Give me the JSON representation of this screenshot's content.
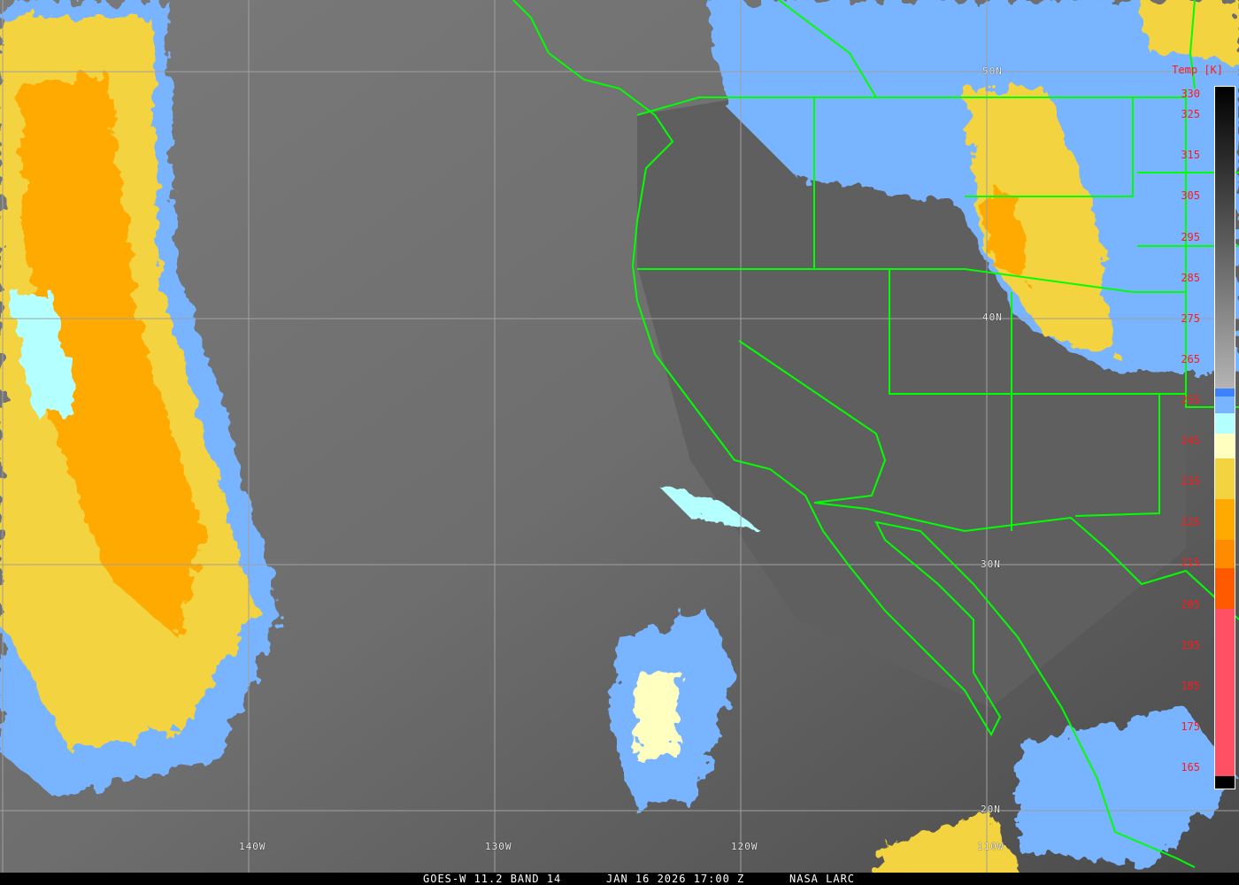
{
  "caption": {
    "satellite": "GOES-W 11.2 BAND 14",
    "datetime": "JAN 16 2026 17:00 Z",
    "credit": "NASA LARC"
  },
  "grid": {
    "longitudes": [
      "140W",
      "130W",
      "120W",
      "110W"
    ],
    "latitudes": [
      "50N",
      "40N",
      "30N",
      "20N"
    ]
  },
  "colorbar": {
    "title": "Temp [K]",
    "ticks": [
      "330",
      "325",
      "315",
      "305",
      "295",
      "285",
      "275",
      "265",
      "255",
      "245",
      "235",
      "225",
      "215",
      "205",
      "195",
      "185",
      "175",
      "165"
    ],
    "range_k": [
      160,
      332
    ],
    "segments": [
      {
        "from": 332,
        "to": 258,
        "color": "gradient #000000→#b4b4b4"
      },
      {
        "from": 258,
        "to": 256,
        "color": "#3c82ff"
      },
      {
        "from": 256,
        "to": 252,
        "color": "#78b4ff"
      },
      {
        "from": 252,
        "to": 247,
        "color": "#b4ffff"
      },
      {
        "from": 247,
        "to": 241,
        "color": "#ffffc0"
      },
      {
        "from": 241,
        "to": 231,
        "color": "#f3d33f"
      },
      {
        "from": 231,
        "to": 221,
        "color": "#ffaa00"
      },
      {
        "from": 221,
        "to": 214,
        "color": "#ff8c00"
      },
      {
        "from": 214,
        "to": 204,
        "color": "#ff5a00"
      },
      {
        "from": 204,
        "to": 163,
        "color": "#ff5064"
      },
      {
        "from": 163,
        "to": 160,
        "color": "#000000"
      }
    ]
  },
  "colors": {
    "boundaries": "#00ff00",
    "grid": "#a0a0a0",
    "labels": "#ff1a1a"
  }
}
